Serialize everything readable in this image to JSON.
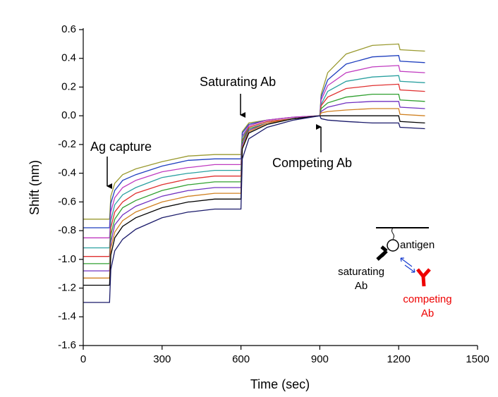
{
  "chart_data": {
    "type": "line",
    "xlabel": "Time (sec)",
    "ylabel": "Shift (nm)",
    "xlim": [
      0,
      1500
    ],
    "xticks": [
      0,
      300,
      600,
      900,
      1200,
      1500
    ],
    "ylim": [
      -1.6,
      0.6
    ],
    "yticks": [
      {
        "value": -1.6,
        "label": "-1.6"
      },
      {
        "value": -1.4,
        "label": "-1.4"
      },
      {
        "value": -1.2,
        "label": "-1.2"
      },
      {
        "value": -1,
        "label": "-1.0"
      },
      {
        "value": -0.8,
        "label": "-0.8"
      },
      {
        "value": -0.6,
        "label": "-0.6"
      },
      {
        "value": -0.4,
        "label": "-0.4"
      },
      {
        "value": -0.2,
        "label": "-0.2"
      },
      {
        "value": 0,
        "label": "0.0"
      },
      0.2,
      0.4,
      0.6
    ],
    "annotations": [
      "Ag capture",
      "Saturating Ab",
      "Competing Ab"
    ],
    "inset": {
      "antigen": "antigen",
      "saturating_ab": [
        "saturating",
        "Ab"
      ],
      "competing_ab": [
        "competing",
        "Ab"
      ]
    },
    "x": [
      0,
      100,
      105,
      120,
      150,
      200,
      300,
      400,
      405,
      500,
      600,
      605,
      630,
      700,
      800,
      900,
      905,
      930,
      1000,
      1100,
      1200,
      1205,
      1300
    ],
    "series": [
      {
        "color": "#9a9a30",
        "values": [
          -0.72,
          -0.72,
          -0.56,
          -0.47,
          -0.41,
          -0.37,
          -0.32,
          -0.28,
          -0.28,
          -0.27,
          -0.27,
          -0.11,
          -0.05,
          -0.03,
          -0.01,
          0,
          0.15,
          0.3,
          0.43,
          0.49,
          0.5,
          0.46,
          0.45
        ]
      },
      {
        "color": "#1f3fbf",
        "values": [
          -0.78,
          -0.78,
          -0.61,
          -0.52,
          -0.45,
          -0.41,
          -0.35,
          -0.31,
          -0.31,
          -0.3,
          -0.3,
          -0.12,
          -0.06,
          -0.03,
          -0.01,
          0,
          0.13,
          0.25,
          0.36,
          0.41,
          0.42,
          0.38,
          0.37
        ]
      },
      {
        "color": "#c03ac0",
        "values": [
          -0.85,
          -0.85,
          -0.67,
          -0.57,
          -0.5,
          -0.45,
          -0.39,
          -0.36,
          -0.36,
          -0.34,
          -0.34,
          -0.14,
          -0.07,
          -0.03,
          -0.01,
          0,
          0.11,
          0.21,
          0.3,
          0.34,
          0.35,
          0.31,
          0.3
        ]
      },
      {
        "color": "#2aa0a0",
        "values": [
          -0.92,
          -0.92,
          -0.73,
          -0.62,
          -0.55,
          -0.5,
          -0.43,
          -0.4,
          -0.4,
          -0.38,
          -0.38,
          -0.15,
          -0.08,
          -0.04,
          -0.02,
          0,
          0.08,
          0.17,
          0.24,
          0.27,
          0.28,
          0.24,
          0.23
        ]
      },
      {
        "color": "#e03030",
        "values": [
          -0.98,
          -0.98,
          -0.78,
          -0.67,
          -0.6,
          -0.54,
          -0.48,
          -0.44,
          -0.44,
          -0.42,
          -0.42,
          -0.17,
          -0.08,
          -0.04,
          -0.02,
          0,
          0.07,
          0.13,
          0.19,
          0.21,
          0.22,
          0.18,
          0.17
        ]
      },
      {
        "color": "#30a030",
        "values": [
          -1.03,
          -1.03,
          -0.83,
          -0.72,
          -0.64,
          -0.59,
          -0.52,
          -0.48,
          -0.48,
          -0.46,
          -0.46,
          -0.18,
          -0.09,
          -0.05,
          -0.02,
          0,
          0.05,
          0.09,
          0.13,
          0.15,
          0.15,
          0.11,
          0.1
        ]
      },
      {
        "color": "#7030c0",
        "values": [
          -1.08,
          -1.08,
          -0.88,
          -0.76,
          -0.69,
          -0.63,
          -0.56,
          -0.52,
          -0.52,
          -0.5,
          -0.5,
          -0.2,
          -0.1,
          -0.05,
          -0.02,
          0,
          0.03,
          0.06,
          0.09,
          0.1,
          0.1,
          0.06,
          0.05
        ]
      },
      {
        "color": "#d08020",
        "values": [
          -1.13,
          -1.13,
          -0.92,
          -0.81,
          -0.73,
          -0.67,
          -0.6,
          -0.56,
          -0.56,
          -0.54,
          -0.54,
          -0.22,
          -0.11,
          -0.05,
          -0.02,
          0,
          0.02,
          0.03,
          0.04,
          0.05,
          0.05,
          0.01,
          0.0
        ]
      },
      {
        "color": "#000000",
        "values": [
          -1.18,
          -1.18,
          -0.97,
          -0.85,
          -0.77,
          -0.71,
          -0.64,
          -0.6,
          -0.6,
          -0.58,
          -0.58,
          -0.23,
          -0.12,
          -0.06,
          -0.02,
          0,
          0,
          0,
          0,
          0,
          0,
          -0.04,
          -0.05
        ]
      },
      {
        "color": "#1a1a6a",
        "values": [
          -1.3,
          -1.3,
          -1.07,
          -0.94,
          -0.86,
          -0.79,
          -0.71,
          -0.67,
          -0.67,
          -0.65,
          -0.65,
          -0.3,
          -0.16,
          -0.08,
          -0.03,
          0,
          -0.02,
          -0.03,
          -0.04,
          -0.05,
          -0.05,
          -0.08,
          -0.09
        ]
      }
    ]
  }
}
